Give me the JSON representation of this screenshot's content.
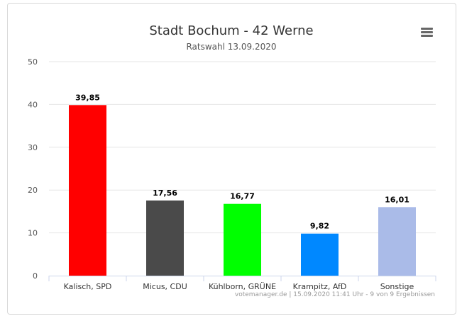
{
  "chart_data": {
    "type": "bar",
    "title": "Stadt Bochum - 42 Werne",
    "subtitle": "Ratswahl 13.09.2020",
    "categories": [
      "Kalisch, SPD",
      "Micus, CDU",
      "Kühlborn, GRÜNE",
      "Krampitz, AfD",
      "Sonstige"
    ],
    "values": [
      39.85,
      17.56,
      16.77,
      9.82,
      16.01
    ],
    "value_labels": [
      "39,85",
      "17,56",
      "16,77",
      "9,82",
      "16,01"
    ],
    "colors": [
      "#ff0000",
      "#4a4a4a",
      "#00ff00",
      "#0088ff",
      "#aabbe8"
    ],
    "ylim": [
      0,
      50
    ],
    "yticks": [
      0,
      10,
      20,
      30,
      40,
      50
    ],
    "grid": true,
    "legend": "none"
  },
  "credits": "votemanager.de | 15.09.2020 11:41 Uhr - 9 von 9 Ergebnissen",
  "menu_icon": "hamburger-menu-icon"
}
